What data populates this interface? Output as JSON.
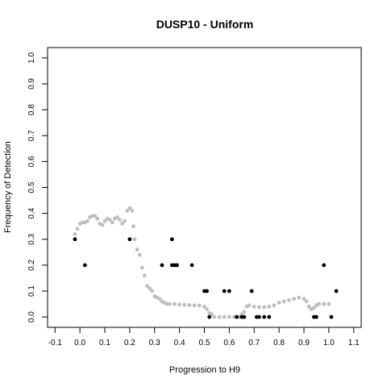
{
  "chart_data": {
    "type": "scatter",
    "title": "DUSP10 - Uniform",
    "xlabel": "Progression to H9",
    "ylabel": "Frequency of Detection",
    "xlim": [
      -0.1,
      1.1
    ],
    "ylim": [
      0.0,
      1.0
    ],
    "x_ticks": [
      "-0.1",
      "0.0",
      "0.1",
      "0.2",
      "0.3",
      "0.4",
      "0.5",
      "0.6",
      "0.7",
      "0.8",
      "0.9",
      "1.0",
      "1.1"
    ],
    "y_ticks": [
      "0.0",
      "0.1",
      "0.2",
      "0.3",
      "0.4",
      "0.5",
      "0.6",
      "0.7",
      "0.8",
      "0.9",
      "1.0"
    ],
    "grid": false,
    "series": [
      {
        "color": "#bebebe",
        "marker": "filled-circle",
        "points": [
          [
            -0.02,
            0.32
          ],
          [
            -0.01,
            0.34
          ],
          [
            0.0,
            0.36
          ],
          [
            0.01,
            0.365
          ],
          [
            0.02,
            0.365
          ],
          [
            0.03,
            0.37
          ],
          [
            0.04,
            0.385
          ],
          [
            0.05,
            0.39
          ],
          [
            0.06,
            0.39
          ],
          [
            0.07,
            0.38
          ],
          [
            0.08,
            0.36
          ],
          [
            0.09,
            0.355
          ],
          [
            0.1,
            0.37
          ],
          [
            0.11,
            0.38
          ],
          [
            0.12,
            0.375
          ],
          [
            0.13,
            0.365
          ],
          [
            0.14,
            0.38
          ],
          [
            0.15,
            0.385
          ],
          [
            0.16,
            0.375
          ],
          [
            0.17,
            0.36
          ],
          [
            0.18,
            0.37
          ],
          [
            0.19,
            0.41
          ],
          [
            0.2,
            0.42
          ],
          [
            0.21,
            0.41
          ],
          [
            0.215,
            0.35
          ],
          [
            0.22,
            0.3
          ],
          [
            0.23,
            0.26
          ],
          [
            0.24,
            0.24
          ],
          [
            0.25,
            0.19
          ],
          [
            0.26,
            0.16
          ],
          [
            0.27,
            0.12
          ],
          [
            0.28,
            0.11
          ],
          [
            0.29,
            0.1
          ],
          [
            0.3,
            0.08
          ],
          [
            0.31,
            0.075
          ],
          [
            0.32,
            0.07
          ],
          [
            0.33,
            0.06
          ],
          [
            0.34,
            0.055
          ],
          [
            0.35,
            0.05
          ],
          [
            0.36,
            0.05
          ],
          [
            0.38,
            0.05
          ],
          [
            0.4,
            0.048
          ],
          [
            0.42,
            0.047
          ],
          [
            0.44,
            0.046
          ],
          [
            0.46,
            0.045
          ],
          [
            0.48,
            0.044
          ],
          [
            0.5,
            0.04
          ],
          [
            0.51,
            0.03
          ],
          [
            0.52,
            0.015
          ],
          [
            0.53,
            0.01
          ],
          [
            0.54,
            0.0
          ],
          [
            0.56,
            0.0
          ],
          [
            0.58,
            0.0
          ],
          [
            0.6,
            0.0
          ],
          [
            0.62,
            0.0
          ],
          [
            0.64,
            0.0
          ],
          [
            0.65,
            0.01
          ],
          [
            0.66,
            0.02
          ],
          [
            0.67,
            0.04
          ],
          [
            0.68,
            0.045
          ],
          [
            0.7,
            0.04
          ],
          [
            0.72,
            0.038
          ],
          [
            0.74,
            0.038
          ],
          [
            0.76,
            0.04
          ],
          [
            0.78,
            0.045
          ],
          [
            0.8,
            0.055
          ],
          [
            0.82,
            0.06
          ],
          [
            0.84,
            0.065
          ],
          [
            0.86,
            0.07
          ],
          [
            0.88,
            0.075
          ],
          [
            0.9,
            0.07
          ],
          [
            0.91,
            0.06
          ],
          [
            0.92,
            0.04
          ],
          [
            0.93,
            0.03
          ],
          [
            0.94,
            0.035
          ],
          [
            0.95,
            0.045
          ],
          [
            0.96,
            0.05
          ],
          [
            0.98,
            0.05
          ],
          [
            1.0,
            0.05
          ]
        ]
      },
      {
        "color": "#000000",
        "marker": "filled-circle",
        "points": [
          [
            -0.02,
            0.3
          ],
          [
            0.02,
            0.2
          ],
          [
            0.2,
            0.3
          ],
          [
            0.33,
            0.2
          ],
          [
            0.37,
            0.3
          ],
          [
            0.37,
            0.2
          ],
          [
            0.38,
            0.2
          ],
          [
            0.39,
            0.2
          ],
          [
            0.45,
            0.2
          ],
          [
            0.5,
            0.1
          ],
          [
            0.51,
            0.1
          ],
          [
            0.52,
            0.0
          ],
          [
            0.58,
            0.1
          ],
          [
            0.6,
            0.1
          ],
          [
            0.63,
            0.0
          ],
          [
            0.65,
            0.0
          ],
          [
            0.66,
            0.0
          ],
          [
            0.69,
            0.1
          ],
          [
            0.71,
            0.0
          ],
          [
            0.72,
            0.0
          ],
          [
            0.74,
            0.0
          ],
          [
            0.76,
            0.0
          ],
          [
            0.94,
            0.0
          ],
          [
            0.95,
            0.0
          ],
          [
            0.98,
            0.2
          ],
          [
            1.01,
            0.0
          ],
          [
            1.03,
            0.1
          ]
        ]
      }
    ]
  }
}
